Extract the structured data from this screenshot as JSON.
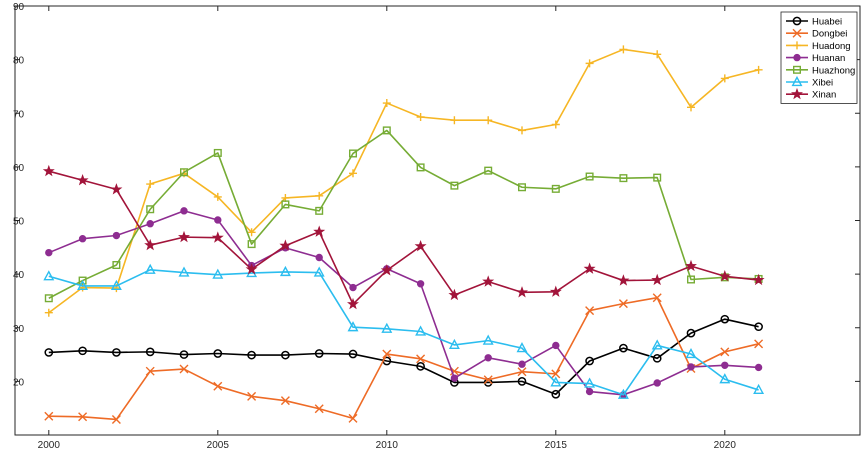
{
  "chart_data": {
    "type": "line",
    "title": "",
    "xlabel": "",
    "ylabel": "",
    "xlim": [
      1999,
      2024
    ],
    "ylim": [
      10,
      90
    ],
    "xticks": [
      2000,
      2005,
      2010,
      2015,
      2020
    ],
    "yticks": [
      20,
      30,
      40,
      50,
      60,
      70,
      80,
      90
    ],
    "grid": false,
    "legend_position": "top-right",
    "x": [
      2000,
      2001,
      2002,
      2003,
      2004,
      2005,
      2006,
      2007,
      2008,
      2009,
      2010,
      2011,
      2012,
      2013,
      2014,
      2015,
      2016,
      2017,
      2018,
      2019,
      2020,
      2021
    ],
    "series": [
      {
        "name": "Huabei",
        "color": "#000000",
        "marker": "circle",
        "values": [
          25.4,
          25.7,
          25.4,
          25.5,
          25.0,
          25.2,
          24.9,
          24.9,
          25.2,
          25.1,
          23.8,
          22.8,
          19.8,
          19.8,
          20.0,
          17.6,
          23.8,
          26.2,
          24.3,
          29.0,
          31.6,
          30.2
        ]
      },
      {
        "name": "Dongbei",
        "color": "#EE6B26",
        "marker": "x",
        "values": [
          13.5,
          13.4,
          12.9,
          21.9,
          22.3,
          19.1,
          17.2,
          16.4,
          14.9,
          13.1,
          25.1,
          24.2,
          21.9,
          20.3,
          21.8,
          21.4,
          33.2,
          34.5,
          35.6,
          22.4,
          25.5,
          27.0
        ]
      },
      {
        "name": "Huadong",
        "color": "#F6B624",
        "marker": "plus",
        "values": [
          32.8,
          37.5,
          37.4,
          56.8,
          58.8,
          54.4,
          47.8,
          54.2,
          54.6,
          58.8,
          71.9,
          69.3,
          68.7,
          68.7,
          66.8,
          67.9,
          79.3,
          81.9,
          81.0,
          71.1,
          76.5,
          78.1
        ]
      },
      {
        "name": "Huanan",
        "color": "#8E2D91",
        "marker": "dot",
        "values": [
          44.0,
          46.6,
          47.2,
          49.4,
          51.8,
          50.1,
          41.6,
          44.9,
          43.1,
          37.5,
          41.0,
          38.2,
          20.6,
          24.4,
          23.2,
          26.7,
          18.1,
          17.5,
          19.7,
          22.7,
          23.0,
          22.6
        ]
      },
      {
        "name": "Huazhong",
        "color": "#76AC35",
        "marker": "square",
        "values": [
          35.5,
          38.8,
          41.7,
          52.1,
          59.0,
          62.6,
          45.6,
          53.0,
          51.8,
          62.5,
          66.8,
          59.9,
          56.5,
          59.3,
          56.2,
          55.9,
          58.2,
          57.9,
          58.0,
          39.0,
          39.4,
          39.1
        ]
      },
      {
        "name": "Xibei",
        "color": "#2BBDEF",
        "marker": "triangle",
        "values": [
          39.6,
          37.8,
          37.8,
          40.8,
          40.3,
          39.9,
          40.2,
          40.4,
          40.3,
          30.1,
          29.8,
          29.3,
          26.8,
          27.6,
          26.2,
          19.8,
          19.6,
          17.5,
          26.7,
          25.1,
          20.4,
          18.4
        ]
      },
      {
        "name": "Xinan",
        "color": "#A2143A",
        "marker": "star",
        "values": [
          59.2,
          57.5,
          55.8,
          45.4,
          46.9,
          46.8,
          40.9,
          45.3,
          47.9,
          34.4,
          40.7,
          45.2,
          36.1,
          38.6,
          36.6,
          36.7,
          41.0,
          38.8,
          38.9,
          41.5,
          39.6,
          38.9
        ]
      }
    ]
  }
}
